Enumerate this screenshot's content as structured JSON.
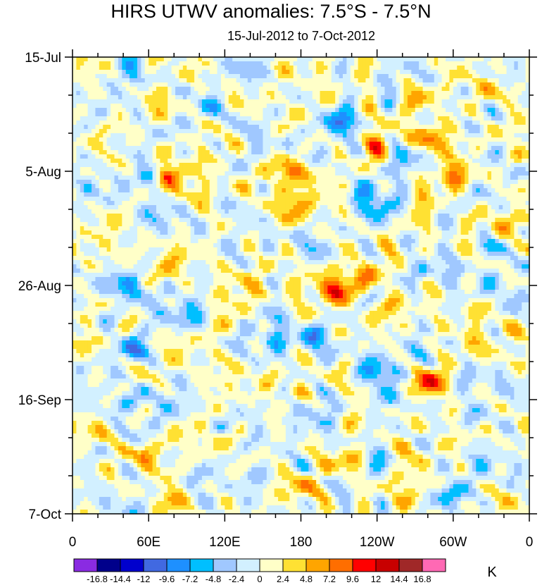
{
  "chart_data": {
    "type": "heatmap",
    "title": "HIRS UTWV anomalies: 7.5°S - 7.5°N",
    "subtitle": "15-Jul-2012 to 7-Oct-2012",
    "xlabel": "",
    "ylabel": "",
    "x_ticks": [
      "0",
      "60E",
      "120E",
      "180",
      "120W",
      "60W",
      "0"
    ],
    "x_tick_values": [
      0,
      60,
      120,
      180,
      240,
      300,
      360
    ],
    "xlim": [
      0,
      360
    ],
    "y_ticks": [
      "15-Jul",
      "5-Aug",
      "26-Aug",
      "16-Sep",
      "7-Oct"
    ],
    "y_tick_days": [
      0,
      21,
      42,
      63,
      84
    ],
    "ylim_days": [
      0,
      84
    ],
    "colorbar": {
      "unit": "K",
      "levels": [
        "-16.8",
        "-14.4",
        "-12",
        "-9.6",
        "-7.2",
        "-4.8",
        "-2.4",
        "0",
        "2.4",
        "4.8",
        "7.2",
        "9.6",
        "12",
        "14.4",
        "16.8"
      ],
      "colors": [
        "#8a2be2",
        "#00008b",
        "#0000cd",
        "#4169e1",
        "#1e90ff",
        "#00bfff",
        "#a0c8ff",
        "#d2f0ff",
        "#ffffc8",
        "#ffe133",
        "#ffa500",
        "#ff6e00",
        "#ff0000",
        "#c80000",
        "#a02828",
        "#ff69b4"
      ]
    },
    "features": [
      {
        "lon": 75,
        "day": 10,
        "value": 4.0
      },
      {
        "lon": 140,
        "day": 2,
        "value": -6.0
      },
      {
        "lon": 165,
        "day": 2,
        "value": 4.0
      },
      {
        "lon": 210,
        "day": 12,
        "value": -9.0
      },
      {
        "lon": 240,
        "day": 16,
        "value": 7.0
      },
      {
        "lon": 285,
        "day": 15,
        "value": 10.0
      },
      {
        "lon": 275,
        "day": 7,
        "value": 5.0
      },
      {
        "lon": 330,
        "day": 6,
        "value": 5.0
      },
      {
        "lon": 20,
        "day": 5,
        "value": 2.5
      },
      {
        "lon": 45,
        "day": 4,
        "value": -5.0
      },
      {
        "lon": 300,
        "day": 22,
        "value": 11.0
      },
      {
        "lon": 245,
        "day": 28,
        "value": -10.0
      },
      {
        "lon": 230,
        "day": 25,
        "value": -7.0
      },
      {
        "lon": 175,
        "day": 21,
        "value": 9.0
      },
      {
        "lon": 165,
        "day": 30,
        "value": 5.0
      },
      {
        "lon": 60,
        "day": 22,
        "value": -9.0
      },
      {
        "lon": 75,
        "day": 22,
        "value": 10.0
      },
      {
        "lon": 100,
        "day": 25,
        "value": 6.0
      },
      {
        "lon": 180,
        "day": 27,
        "value": 6.0
      },
      {
        "lon": 230,
        "day": 40,
        "value": 12.0
      },
      {
        "lon": 208,
        "day": 43,
        "value": 10.0
      },
      {
        "lon": 260,
        "day": 36,
        "value": 6.0
      },
      {
        "lon": 280,
        "day": 40,
        "value": -4.0
      },
      {
        "lon": 330,
        "day": 35,
        "value": -6.0
      },
      {
        "lon": 345,
        "day": 30,
        "value": 4.0
      },
      {
        "lon": 45,
        "day": 42,
        "value": -8.0
      },
      {
        "lon": 50,
        "day": 54,
        "value": -11.0
      },
      {
        "lon": 95,
        "day": 48,
        "value": -5.0
      },
      {
        "lon": 110,
        "day": 50,
        "value": 5.0
      },
      {
        "lon": 130,
        "day": 44,
        "value": 4.0
      },
      {
        "lon": 160,
        "day": 52,
        "value": -5.0
      },
      {
        "lon": 185,
        "day": 52,
        "value": -5.0
      },
      {
        "lon": 280,
        "day": 60,
        "value": 12.0
      },
      {
        "lon": 240,
        "day": 58,
        "value": -6.0
      },
      {
        "lon": 250,
        "day": 63,
        "value": -9.0
      },
      {
        "lon": 320,
        "day": 55,
        "value": 4.0
      },
      {
        "lon": 330,
        "day": 66,
        "value": -5.0
      },
      {
        "lon": 20,
        "day": 68,
        "value": 3.0
      },
      {
        "lon": 45,
        "day": 63,
        "value": -5.0
      },
      {
        "lon": 80,
        "day": 81,
        "value": 9.0
      },
      {
        "lon": 60,
        "day": 73,
        "value": 4.5
      },
      {
        "lon": 120,
        "day": 70,
        "value": 4.0
      },
      {
        "lon": 140,
        "day": 77,
        "value": -6.0
      },
      {
        "lon": 180,
        "day": 79,
        "value": 7.0
      },
      {
        "lon": 210,
        "day": 74,
        "value": 5.0
      },
      {
        "lon": 260,
        "day": 72,
        "value": 5.0
      },
      {
        "lon": 275,
        "day": 78,
        "value": 4.0
      },
      {
        "lon": 300,
        "day": 80,
        "value": -6.0
      },
      {
        "lon": 330,
        "day": 74,
        "value": -4.0
      },
      {
        "lon": 100,
        "day": 80,
        "value": -4.0
      },
      {
        "lon": 30,
        "day": 82,
        "value": -3.0
      },
      {
        "lon": 350,
        "day": 82,
        "value": 3.0
      },
      {
        "lon": 115,
        "day": 10,
        "value": -3.0
      },
      {
        "lon": 190,
        "day": 65,
        "value": -4.0
      }
    ]
  }
}
